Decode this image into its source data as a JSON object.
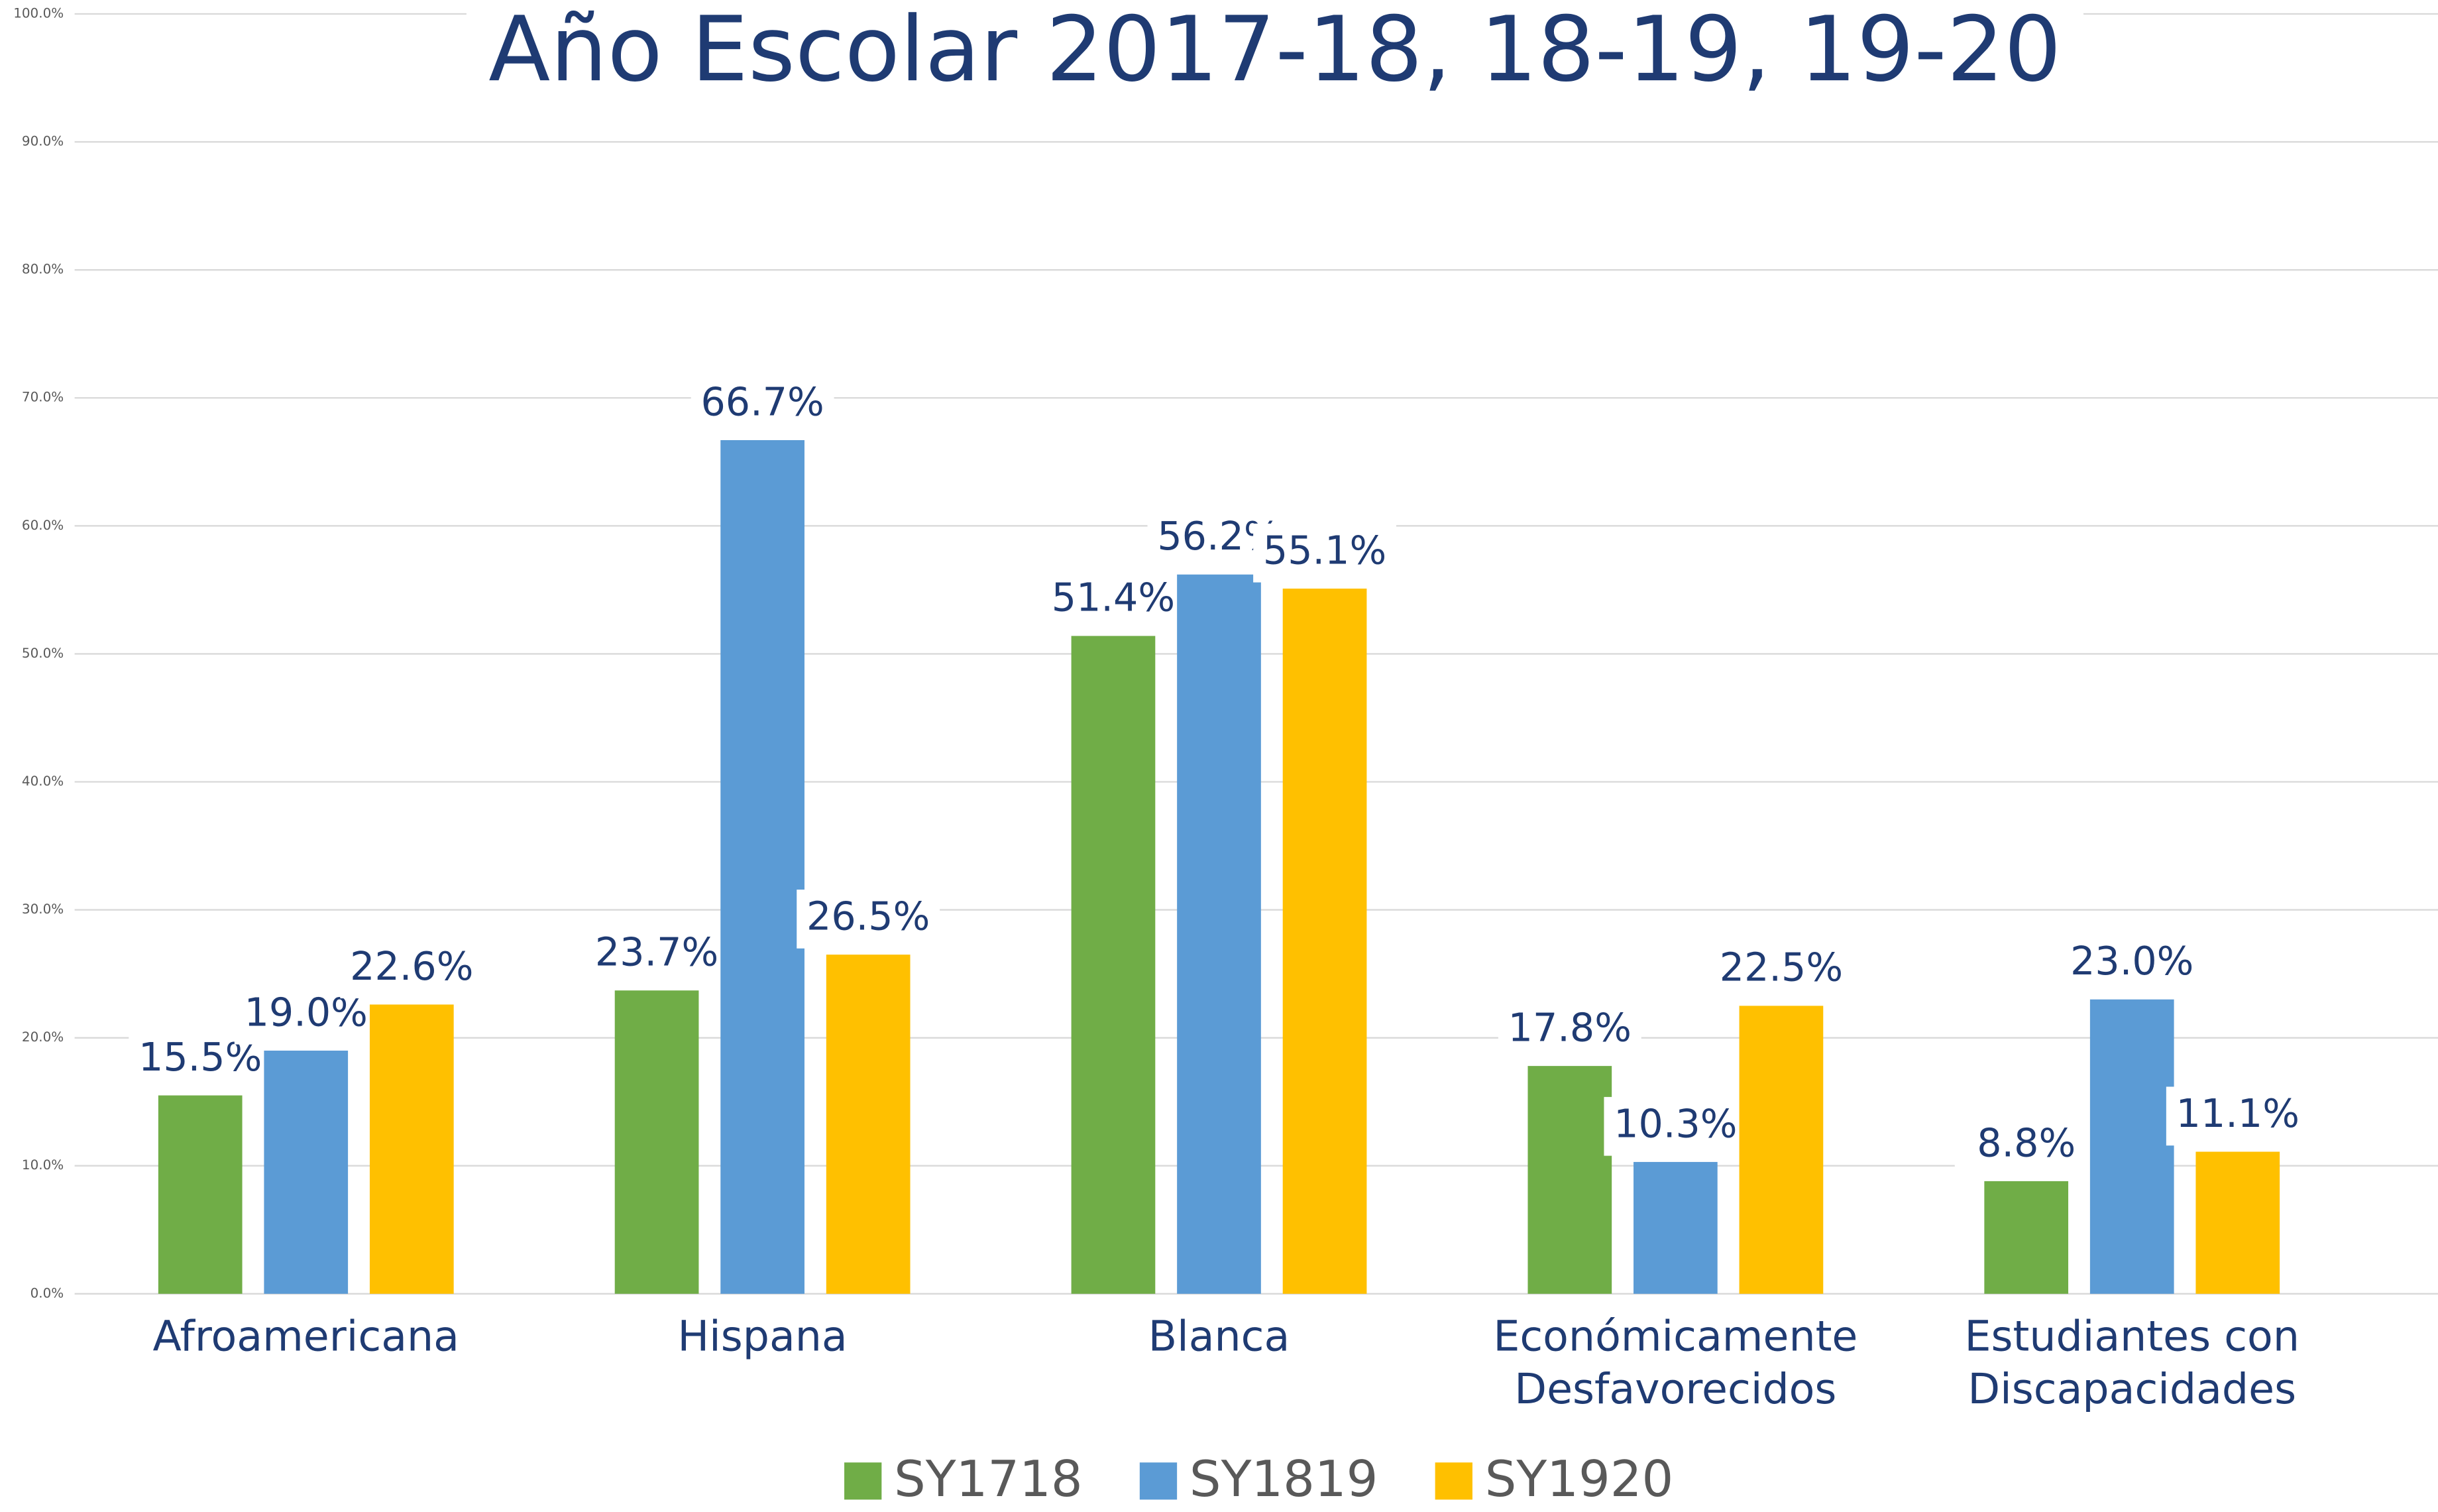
{
  "chart_data": {
    "type": "bar",
    "title": "Año Escolar 2017-18, 18-19, 19-20",
    "categories": [
      [
        "Afroamericana"
      ],
      [
        "Hispana"
      ],
      [
        "Blanca"
      ],
      [
        "Económicamente",
        "Desfavorecidos"
      ],
      [
        "Estudiantes con",
        "Discapacidades"
      ]
    ],
    "series": [
      {
        "name": "SY1718",
        "color": "#70ad47",
        "values": [
          15.5,
          23.7,
          51.4,
          17.8,
          8.8
        ],
        "value_labels": [
          "15.5%",
          "23.7%",
          "51.4%",
          "17.8%",
          "8.8%"
        ]
      },
      {
        "name": "SY1819",
        "color": "#5b9bd5",
        "values": [
          19.0,
          66.7,
          56.2,
          10.3,
          23.0
        ],
        "value_labels": [
          "19.0%",
          "66.7%",
          "56.2%",
          "10.3%",
          "23.0%"
        ]
      },
      {
        "name": "SY1920",
        "color": "#ffc000",
        "values": [
          22.6,
          26.5,
          55.1,
          22.5,
          11.1
        ],
        "value_labels": [
          "22.6%",
          "26.5%",
          "55.1%",
          "22.5%",
          "11.1%"
        ]
      }
    ],
    "ylim": [
      0,
      100
    ],
    "yticks": [
      {
        "value": 0,
        "label": "0.0%"
      },
      {
        "value": 10,
        "label": "10.0%"
      },
      {
        "value": 20,
        "label": "20.0%"
      },
      {
        "value": 30,
        "label": "30.0%"
      },
      {
        "value": 40,
        "label": "40.0%"
      },
      {
        "value": 50,
        "label": "50.0%"
      },
      {
        "value": 60,
        "label": "60.0%"
      },
      {
        "value": 70,
        "label": "70.0%"
      },
      {
        "value": 80,
        "label": "80.0%"
      },
      {
        "value": 90,
        "label": "90.0%"
      },
      {
        "value": 100,
        "label": "100.0%"
      }
    ],
    "grid": true,
    "legend": "bottom"
  }
}
